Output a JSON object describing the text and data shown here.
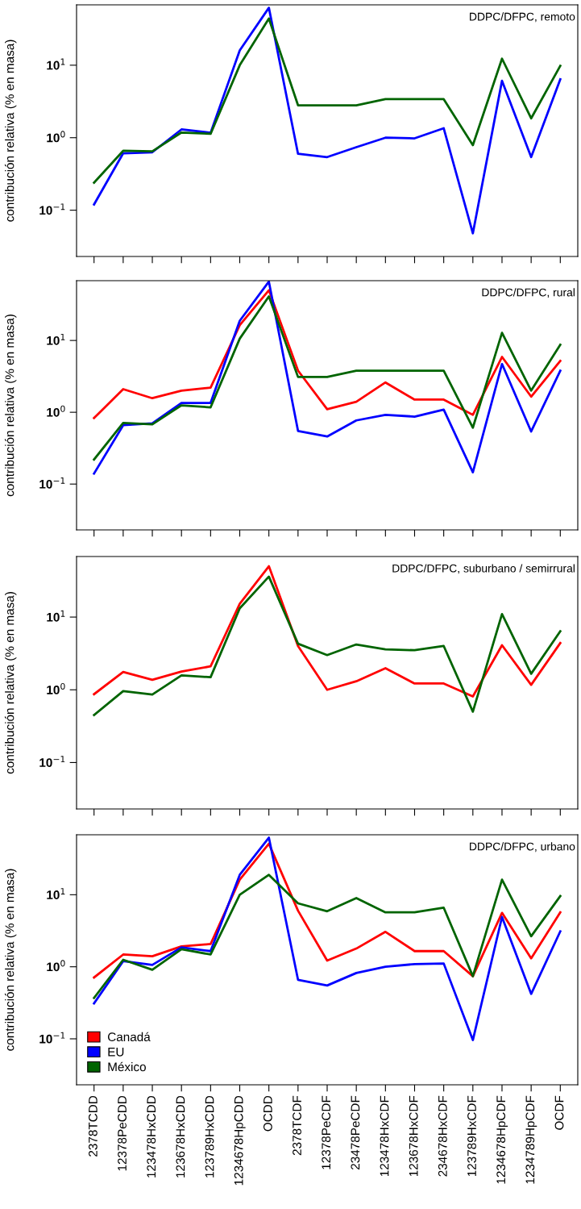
{
  "chart_data": [
    {
      "type": "line",
      "title": "DDPC/DFPC, remoto",
      "ylabel": "contribución relativa (% en masa)",
      "categories": [
        null,
        null,
        null,
        null,
        null,
        null,
        null,
        null,
        null,
        null,
        null,
        null,
        null,
        null,
        null,
        null,
        null
      ],
      "log": true,
      "ylim": [
        0.023,
        68
      ],
      "yticks": [
        {
          "value": 0.1,
          "label": "10$^{−1}$"
        },
        {
          "value": 1,
          "label": "10$^{0}$"
        },
        {
          "value": 10,
          "label": "10$^{1}$"
        }
      ],
      "tick_labels": "y",
      "legend": false,
      "grid": false,
      "series": [
        {
          "color": "#0000ff",
          "values": [
            0.12,
            0.61,
            0.63,
            1.3,
            1.17,
            16,
            62,
            0.6,
            0.54,
            0.74,
            1.0,
            0.98,
            1.35,
            0.048,
            6.1,
            0.54,
            6.4
          ]
        },
        {
          "color": "#006400",
          "values": [
            0.24,
            0.66,
            0.65,
            1.18,
            1.13,
            10,
            44,
            2.8,
            2.8,
            2.8,
            3.4,
            3.4,
            3.4,
            0.79,
            12.3,
            1.85,
            9.8
          ]
        }
      ]
    },
    {
      "type": "line",
      "title": "DDPC/DFPC, rural",
      "ylabel": "contribución relativa (% en masa)",
      "categories": [
        null,
        null,
        null,
        null,
        null,
        null,
        null,
        null,
        null,
        null,
        null,
        null,
        null,
        null,
        null,
        null,
        null
      ],
      "log": true,
      "ylim": [
        0.023,
        68
      ],
      "yticks": [
        {
          "value": 0.1,
          "label": "10$^{−1}$"
        },
        {
          "value": 1,
          "label": "10$^{0}$"
        },
        {
          "value": 10,
          "label": "10$^{1}$"
        }
      ],
      "tick_labels": "y",
      "legend": false,
      "grid": false,
      "series": [
        {
          "color": "#ff0000",
          "values": [
            0.83,
            2.1,
            1.57,
            2.0,
            2.2,
            16.3,
            50,
            3.8,
            1.1,
            1.4,
            2.6,
            1.5,
            1.5,
            0.92,
            5.9,
            1.65,
            5.2
          ]
        },
        {
          "color": "#0000ff",
          "values": [
            0.14,
            0.66,
            0.7,
            1.35,
            1.35,
            18.8,
            66,
            0.55,
            0.46,
            0.77,
            0.92,
            0.87,
            1.09,
            0.146,
            4.7,
            0.54,
            3.8
          ]
        },
        {
          "color": "#006400",
          "values": [
            0.22,
            0.71,
            0.68,
            1.25,
            1.17,
            10.6,
            41,
            3.1,
            3.1,
            3.8,
            3.8,
            3.8,
            3.8,
            0.61,
            12.8,
            2.0,
            8.7
          ]
        }
      ]
    },
    {
      "type": "line",
      "title": "DDPC/DFPC, suburbano / semirrural",
      "ylabel": "contribución relativa (% en masa)",
      "categories": [
        null,
        null,
        null,
        null,
        null,
        null,
        null,
        null,
        null,
        null,
        null,
        null,
        null,
        null,
        null,
        null,
        null
      ],
      "log": true,
      "ylim": [
        0.023,
        68
      ],
      "yticks": [
        {
          "value": 0.1,
          "label": "10$^{−1}$"
        },
        {
          "value": 1,
          "label": "10$^{0}$"
        },
        {
          "value": 10,
          "label": "10$^{1}$"
        }
      ],
      "tick_labels": "y",
      "legend": false,
      "grid": false,
      "series": [
        {
          "color": "#ff0000",
          "values": [
            0.87,
            1.76,
            1.37,
            1.78,
            2.1,
            15.2,
            50,
            4.0,
            1.0,
            1.31,
            1.98,
            1.22,
            1.22,
            0.81,
            4.1,
            1.17,
            4.4
          ]
        },
        {
          "color": "#006400",
          "values": [
            0.45,
            0.96,
            0.86,
            1.58,
            1.49,
            13.2,
            36,
            4.3,
            3.0,
            4.2,
            3.6,
            3.5,
            4.0,
            0.5,
            11,
            1.66,
            6.4
          ]
        }
      ]
    },
    {
      "type": "line",
      "title": "DDPC/DFPC, urbano",
      "ylabel": "contribución relativa (% en masa)",
      "categories": [
        "2378TCDD",
        "12378PeCDD",
        "123478HxCDD",
        "123678HxCDD",
        "123789HxCDD",
        "1234678HpCDD",
        "OCDD",
        "2378TCDF",
        "12378PeCDF",
        "23478PeCDF",
        "123478HxCDF",
        "123678HxCDF",
        "234678HxCDF",
        "123789HxCDF",
        "1234678HpCDF",
        "1234789HpCDF",
        "OCDF"
      ],
      "log": true,
      "ylim": [
        0.023,
        68
      ],
      "yticks": [
        {
          "value": 0.1,
          "label": "10$^{−1}$"
        },
        {
          "value": 1,
          "label": "10$^{0}$"
        },
        {
          "value": 10,
          "label": "10$^{1}$"
        }
      ],
      "legend": "bottom left",
      "grid": false,
      "series": [
        {
          "name": "Canadá",
          "color": "#ff0000",
          "values": [
            0.71,
            1.48,
            1.4,
            1.92,
            2.07,
            16.2,
            51,
            6.0,
            1.22,
            1.79,
            3.06,
            1.65,
            1.65,
            0.74,
            5.6,
            1.31,
            5.7
          ]
        },
        {
          "name": "EU",
          "color": "#0000ff",
          "values": [
            0.31,
            1.2,
            1.06,
            1.86,
            1.65,
            18.9,
            62,
            0.66,
            0.55,
            0.82,
            1.0,
            1.09,
            1.11,
            0.096,
            4.9,
            0.42,
            3.1
          ]
        },
        {
          "name": "México",
          "color": "#006400",
          "values": [
            0.37,
            1.25,
            0.91,
            1.75,
            1.48,
            10,
            18.9,
            7.6,
            5.9,
            9.0,
            5.7,
            5.7,
            6.6,
            0.74,
            16.2,
            2.65,
            9.6
          ]
        }
      ]
    }
  ]
}
